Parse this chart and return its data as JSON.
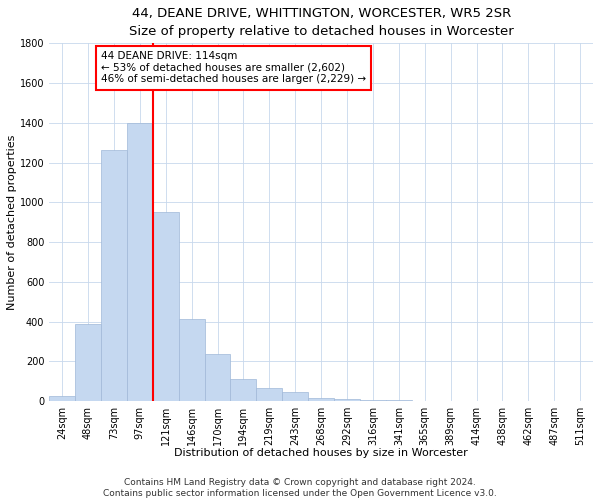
{
  "title": "44, DEANE DRIVE, WHITTINGTON, WORCESTER, WR5 2SR",
  "subtitle": "Size of property relative to detached houses in Worcester",
  "xlabel": "Distribution of detached houses by size in Worcester",
  "ylabel": "Number of detached properties",
  "bar_labels": [
    "24sqm",
    "48sqm",
    "73sqm",
    "97sqm",
    "121sqm",
    "146sqm",
    "170sqm",
    "194sqm",
    "219sqm",
    "243sqm",
    "268sqm",
    "292sqm",
    "316sqm",
    "341sqm",
    "365sqm",
    "389sqm",
    "414sqm",
    "438sqm",
    "462sqm",
    "487sqm",
    "511sqm"
  ],
  "bar_values": [
    25,
    390,
    1265,
    1400,
    950,
    415,
    235,
    110,
    65,
    48,
    15,
    8,
    5,
    3,
    2,
    1,
    0,
    0,
    0,
    0,
    0
  ],
  "bar_color": "#c5d8f0",
  "bar_edge_color": "#a0b8d8",
  "vline_x_idx": 3,
  "vline_color": "red",
  "annotation_text": "44 DEANE DRIVE: 114sqm\n← 53% of detached houses are smaller (2,602)\n46% of semi-detached houses are larger (2,229) →",
  "annotation_box_color": "white",
  "annotation_box_edge_color": "red",
  "ylim": [
    0,
    1800
  ],
  "yticks": [
    0,
    200,
    400,
    600,
    800,
    1000,
    1200,
    1400,
    1600,
    1800
  ],
  "footer_line1": "Contains HM Land Registry data © Crown copyright and database right 2024.",
  "footer_line2": "Contains public sector information licensed under the Open Government Licence v3.0.",
  "title_fontsize": 9.5,
  "subtitle_fontsize": 8.5,
  "axis_label_fontsize": 8,
  "tick_fontsize": 7,
  "annotation_fontsize": 7.5,
  "footer_fontsize": 6.5
}
